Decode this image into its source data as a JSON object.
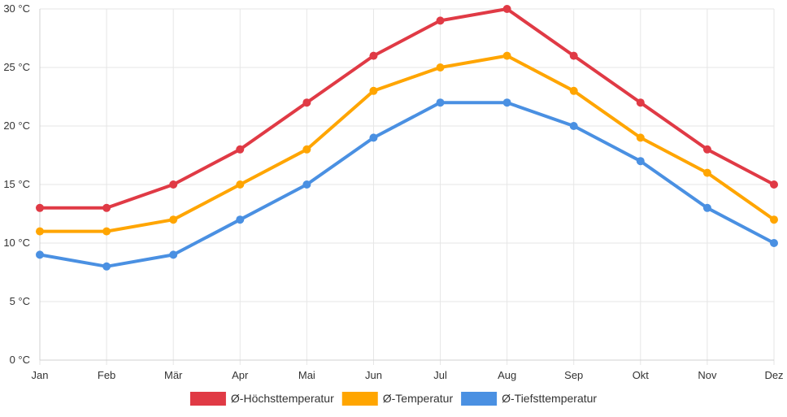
{
  "chart_data": {
    "type": "line",
    "categories": [
      "Jan",
      "Feb",
      "Mär",
      "Apr",
      "Mai",
      "Jun",
      "Jul",
      "Aug",
      "Sep",
      "Okt",
      "Nov",
      "Dez"
    ],
    "series": [
      {
        "name": "Ø-Höchsttemperatur",
        "color": "#e03a45",
        "values": [
          13,
          13,
          15,
          18,
          22,
          26,
          29,
          30,
          26,
          22,
          18,
          15
        ]
      },
      {
        "name": "Ø-Temperatur",
        "color": "#ffa500",
        "values": [
          11,
          11,
          12,
          15,
          18,
          23,
          25,
          26,
          23,
          19,
          16,
          12
        ]
      },
      {
        "name": "Ø-Tiefsttemperatur",
        "color": "#4a90e2",
        "values": [
          9,
          8,
          9,
          12,
          15,
          19,
          22,
          22,
          20,
          17,
          13,
          10
        ]
      }
    ],
    "y_ticks": [
      "0 °C",
      "5 °C",
      "10 °C",
      "15 °C",
      "20 °C",
      "25 °C",
      "30 °C"
    ],
    "ylim": [
      0,
      30
    ],
    "y_step": 5,
    "grid": true,
    "legend_position": "bottom-center"
  }
}
